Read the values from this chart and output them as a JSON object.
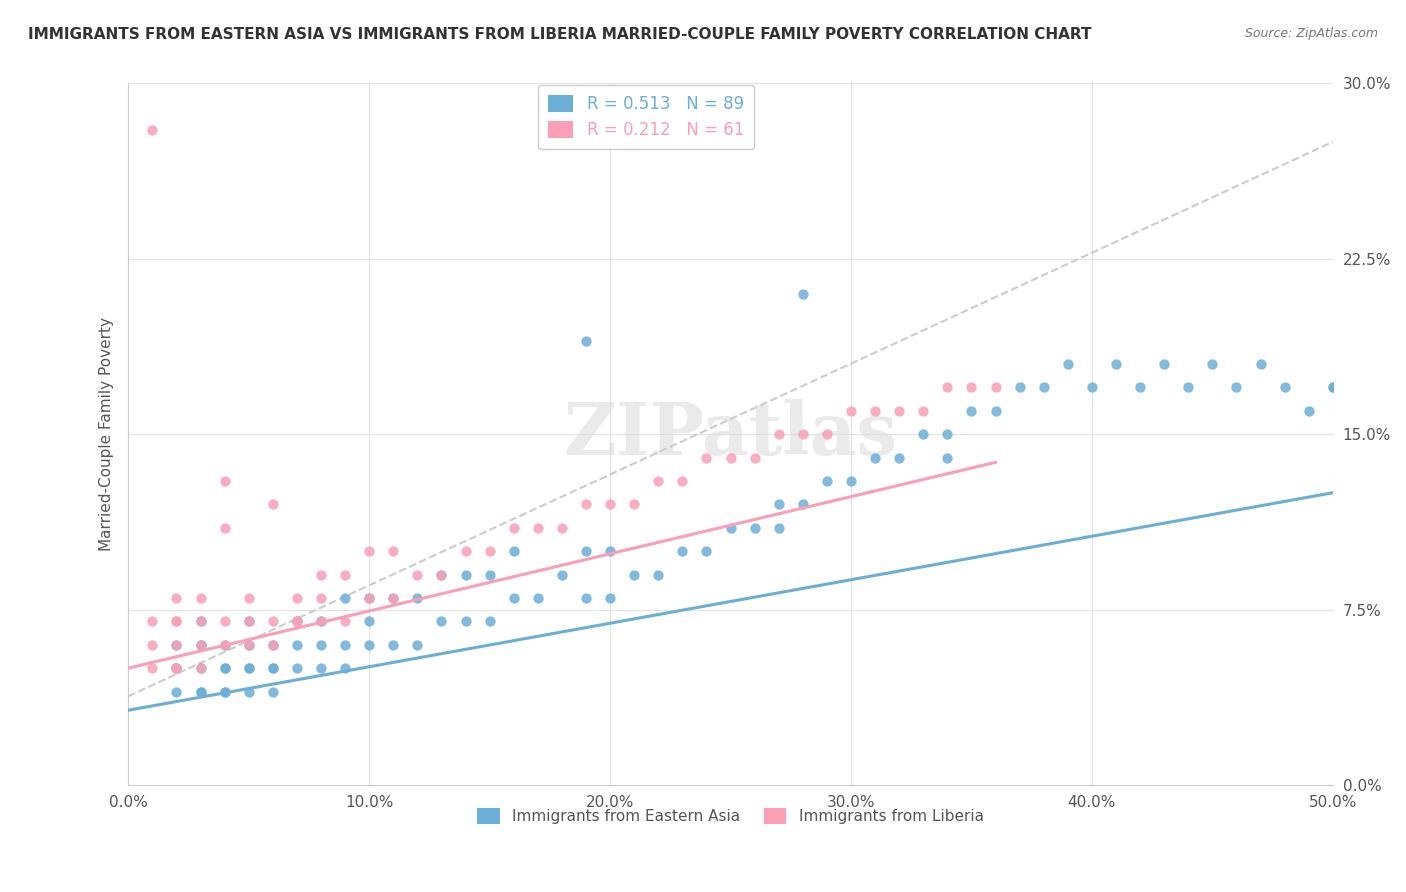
{
  "title": "IMMIGRANTS FROM EASTERN ASIA VS IMMIGRANTS FROM LIBERIA MARRIED-COUPLE FAMILY POVERTY CORRELATION CHART",
  "source": "Source: ZipAtlas.com",
  "ylabel": "Married-Couple Family Poverty",
  "legend_1_r": "0.513",
  "legend_1_n": "89",
  "legend_2_r": "0.212",
  "legend_2_n": "61",
  "legend_1_label": "Immigrants from Eastern Asia",
  "legend_2_label": "Immigrants from Liberia",
  "color_blue": "#6baed6",
  "color_pink": "#fa9fb5",
  "xlim": [
    0.0,
    0.5
  ],
  "ylim": [
    0.0,
    0.3
  ],
  "watermark": "ZIPatlas",
  "blue_scatter_x": [
    0.02,
    0.02,
    0.02,
    0.02,
    0.03,
    0.03,
    0.03,
    0.03,
    0.03,
    0.03,
    0.04,
    0.04,
    0.04,
    0.04,
    0.04,
    0.05,
    0.05,
    0.05,
    0.05,
    0.05,
    0.06,
    0.06,
    0.06,
    0.06,
    0.07,
    0.07,
    0.07,
    0.08,
    0.08,
    0.08,
    0.09,
    0.09,
    0.09,
    0.1,
    0.1,
    0.1,
    0.11,
    0.11,
    0.12,
    0.12,
    0.13,
    0.13,
    0.14,
    0.14,
    0.15,
    0.15,
    0.16,
    0.16,
    0.17,
    0.18,
    0.19,
    0.19,
    0.2,
    0.2,
    0.21,
    0.22,
    0.23,
    0.24,
    0.25,
    0.26,
    0.27,
    0.27,
    0.28,
    0.29,
    0.3,
    0.31,
    0.32,
    0.33,
    0.34,
    0.35,
    0.36,
    0.37,
    0.38,
    0.39,
    0.4,
    0.41,
    0.42,
    0.43,
    0.44,
    0.45,
    0.46,
    0.47,
    0.48,
    0.49,
    0.5,
    0.34,
    0.19,
    0.28,
    0.5
  ],
  "blue_scatter_y": [
    0.04,
    0.05,
    0.05,
    0.06,
    0.04,
    0.04,
    0.05,
    0.06,
    0.06,
    0.07,
    0.04,
    0.04,
    0.05,
    0.05,
    0.06,
    0.04,
    0.05,
    0.05,
    0.06,
    0.07,
    0.04,
    0.05,
    0.05,
    0.06,
    0.05,
    0.06,
    0.07,
    0.05,
    0.06,
    0.07,
    0.05,
    0.06,
    0.08,
    0.06,
    0.07,
    0.08,
    0.06,
    0.08,
    0.06,
    0.08,
    0.07,
    0.09,
    0.07,
    0.09,
    0.07,
    0.09,
    0.08,
    0.1,
    0.08,
    0.09,
    0.08,
    0.1,
    0.08,
    0.1,
    0.09,
    0.09,
    0.1,
    0.1,
    0.11,
    0.11,
    0.11,
    0.12,
    0.12,
    0.13,
    0.13,
    0.14,
    0.14,
    0.15,
    0.15,
    0.16,
    0.16,
    0.17,
    0.17,
    0.18,
    0.17,
    0.18,
    0.17,
    0.18,
    0.17,
    0.18,
    0.17,
    0.18,
    0.17,
    0.16,
    0.17,
    0.14,
    0.19,
    0.21,
    0.17
  ],
  "pink_scatter_x": [
    0.01,
    0.01,
    0.01,
    0.01,
    0.02,
    0.02,
    0.02,
    0.02,
    0.02,
    0.02,
    0.03,
    0.03,
    0.03,
    0.03,
    0.04,
    0.04,
    0.04,
    0.04,
    0.05,
    0.05,
    0.05,
    0.06,
    0.06,
    0.06,
    0.07,
    0.07,
    0.07,
    0.08,
    0.08,
    0.08,
    0.09,
    0.09,
    0.1,
    0.1,
    0.11,
    0.11,
    0.12,
    0.13,
    0.14,
    0.15,
    0.16,
    0.17,
    0.18,
    0.19,
    0.2,
    0.21,
    0.22,
    0.23,
    0.24,
    0.25,
    0.26,
    0.27,
    0.28,
    0.29,
    0.3,
    0.31,
    0.32,
    0.33,
    0.34,
    0.35,
    0.36
  ],
  "pink_scatter_y": [
    0.05,
    0.06,
    0.07,
    0.28,
    0.05,
    0.05,
    0.06,
    0.07,
    0.08,
    0.07,
    0.05,
    0.06,
    0.07,
    0.08,
    0.06,
    0.07,
    0.11,
    0.13,
    0.06,
    0.07,
    0.08,
    0.06,
    0.07,
    0.12,
    0.07,
    0.08,
    0.07,
    0.07,
    0.08,
    0.09,
    0.07,
    0.09,
    0.08,
    0.1,
    0.08,
    0.1,
    0.09,
    0.09,
    0.1,
    0.1,
    0.11,
    0.11,
    0.11,
    0.12,
    0.12,
    0.12,
    0.13,
    0.13,
    0.14,
    0.14,
    0.14,
    0.15,
    0.15,
    0.15,
    0.16,
    0.16,
    0.16,
    0.16,
    0.17,
    0.17,
    0.17
  ],
  "blue_trend_x": [
    0.0,
    0.5
  ],
  "blue_trend_y": [
    0.032,
    0.125
  ],
  "pink_trend_x": [
    0.0,
    0.36
  ],
  "pink_trend_y": [
    0.05,
    0.138
  ],
  "gray_trend_x": [
    0.0,
    0.5
  ],
  "gray_trend_y": [
    0.038,
    0.275
  ],
  "grid_color": "#e0e0e0",
  "background_color": "#ffffff",
  "title_fontsize": 11,
  "source_fontsize": 9,
  "tick_fontsize": 11,
  "ylabel_fontsize": 11,
  "legend_fontsize": 12,
  "scatter_size": 55,
  "scatter_alpha": 0.85
}
